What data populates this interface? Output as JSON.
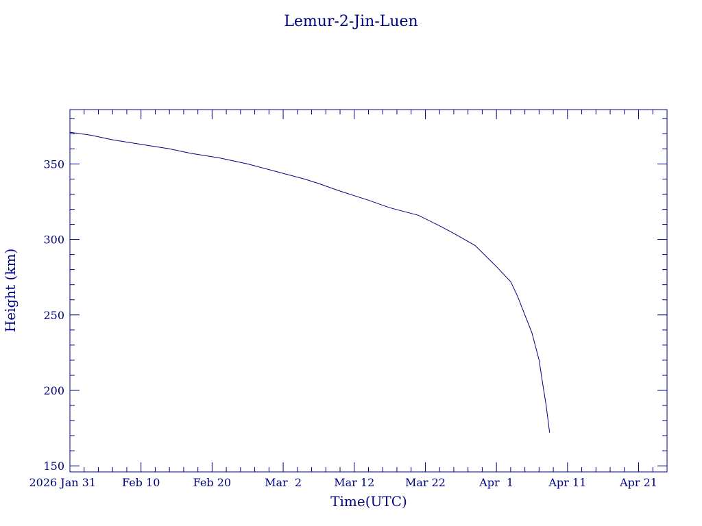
{
  "chart_data": {
    "type": "line",
    "title": "Lemur-2-Jin-Luen",
    "xlabel": "Time(UTC)",
    "ylabel": "Height (km)",
    "x_unit": "date",
    "xlim": [
      "2026-01-31",
      "2026-04-25"
    ],
    "ylim": [
      146,
      386
    ],
    "x_ticks": [
      {
        "date": "2026-01-31",
        "label": "2026 Jan 31"
      },
      {
        "date": "2026-02-10",
        "label": "Feb 10"
      },
      {
        "date": "2026-02-20",
        "label": "Feb 20"
      },
      {
        "date": "2026-03-02",
        "label": "Mar  2"
      },
      {
        "date": "2026-03-12",
        "label": "Mar 12"
      },
      {
        "date": "2026-03-22",
        "label": "Mar 22"
      },
      {
        "date": "2026-04-01",
        "label": "Apr  1"
      },
      {
        "date": "2026-04-11",
        "label": "Apr 11"
      },
      {
        "date": "2026-04-21",
        "label": "Apr 21"
      }
    ],
    "y_ticks": [
      150,
      200,
      250,
      300,
      350
    ],
    "grid": false,
    "color": "#000080",
    "series": [
      {
        "points": [
          {
            "x": "2026-01-31",
            "y": 371
          },
          {
            "x": "2026-02-03",
            "y": 369
          },
          {
            "x": "2026-02-06",
            "y": 366
          },
          {
            "x": "2026-02-10",
            "y": 363
          },
          {
            "x": "2026-02-14",
            "y": 360
          },
          {
            "x": "2026-02-17",
            "y": 357
          },
          {
            "x": "2026-02-21",
            "y": 354
          },
          {
            "x": "2026-02-25",
            "y": 350
          },
          {
            "x": "2026-03-01",
            "y": 345
          },
          {
            "x": "2026-03-05",
            "y": 340
          },
          {
            "x": "2026-03-07",
            "y": 337
          },
          {
            "x": "2026-03-10",
            "y": 332
          },
          {
            "x": "2026-03-14",
            "y": 326
          },
          {
            "x": "2026-03-17",
            "y": 321
          },
          {
            "x": "2026-03-21",
            "y": 316
          },
          {
            "x": "2026-03-24",
            "y": 309
          },
          {
            "x": "2026-03-26",
            "y": 304
          },
          {
            "x": "2026-03-29",
            "y": 296
          },
          {
            "x": "2026-04-01",
            "y": 282
          },
          {
            "x": "2026-04-03",
            "y": 272
          },
          {
            "x": "2026-04-04",
            "y": 262
          },
          {
            "x": "2026-04-05",
            "y": 250
          },
          {
            "x": "2026-04-06",
            "y": 238
          },
          {
            "x": "2026-04-07",
            "y": 220
          },
          {
            "x": "2026-04-07",
            "y": 205
          },
          {
            "x": "2026-04-08",
            "y": 190
          },
          {
            "x": "2026-04-08",
            "y": 172
          }
        ]
      }
    ]
  }
}
